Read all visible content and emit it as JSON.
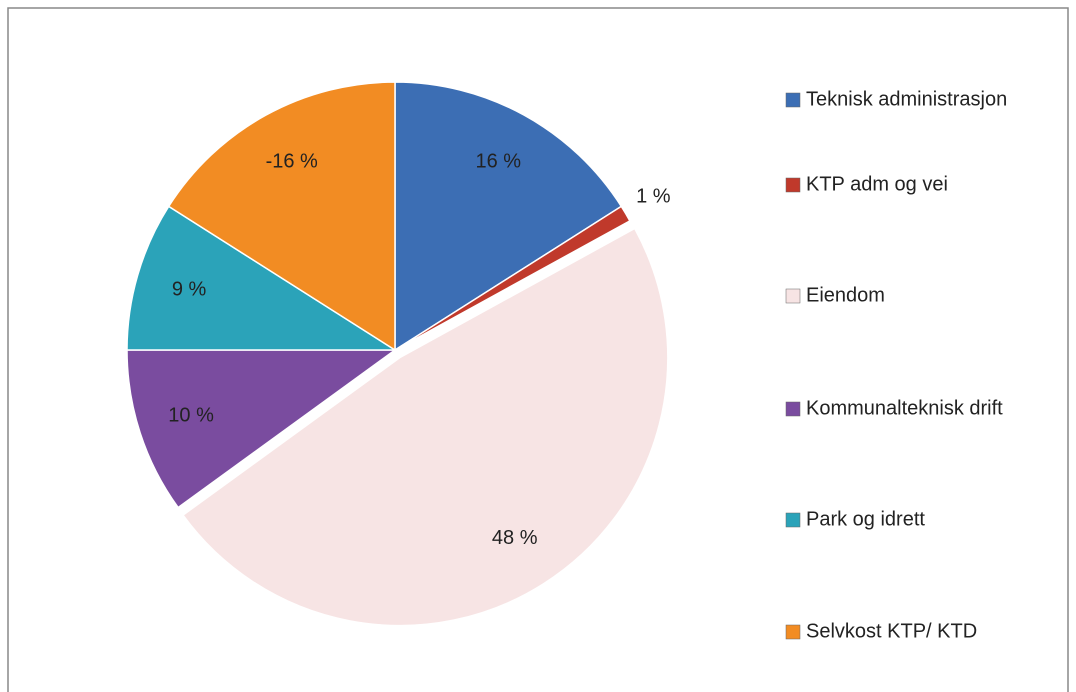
{
  "chart_data": {
    "type": "pie",
    "categories": [
      "Teknisk administrasjon",
      "KTP adm og vei",
      "Eiendom",
      "Kommunalteknisk drift",
      "Park og idrett",
      "Selvkost KTP/ KTD"
    ],
    "values": [
      16,
      1,
      48,
      10,
      9,
      -16
    ],
    "value_labels": [
      "16 %",
      "1 %",
      "48 %",
      "10 %",
      "9 %",
      "-16 %"
    ],
    "colors": [
      "#3c6eb4",
      "#c0392b",
      "#f7e4e4",
      "#7a4c9f",
      "#2ba3b9",
      "#f28c23"
    ],
    "legend": "right"
  }
}
